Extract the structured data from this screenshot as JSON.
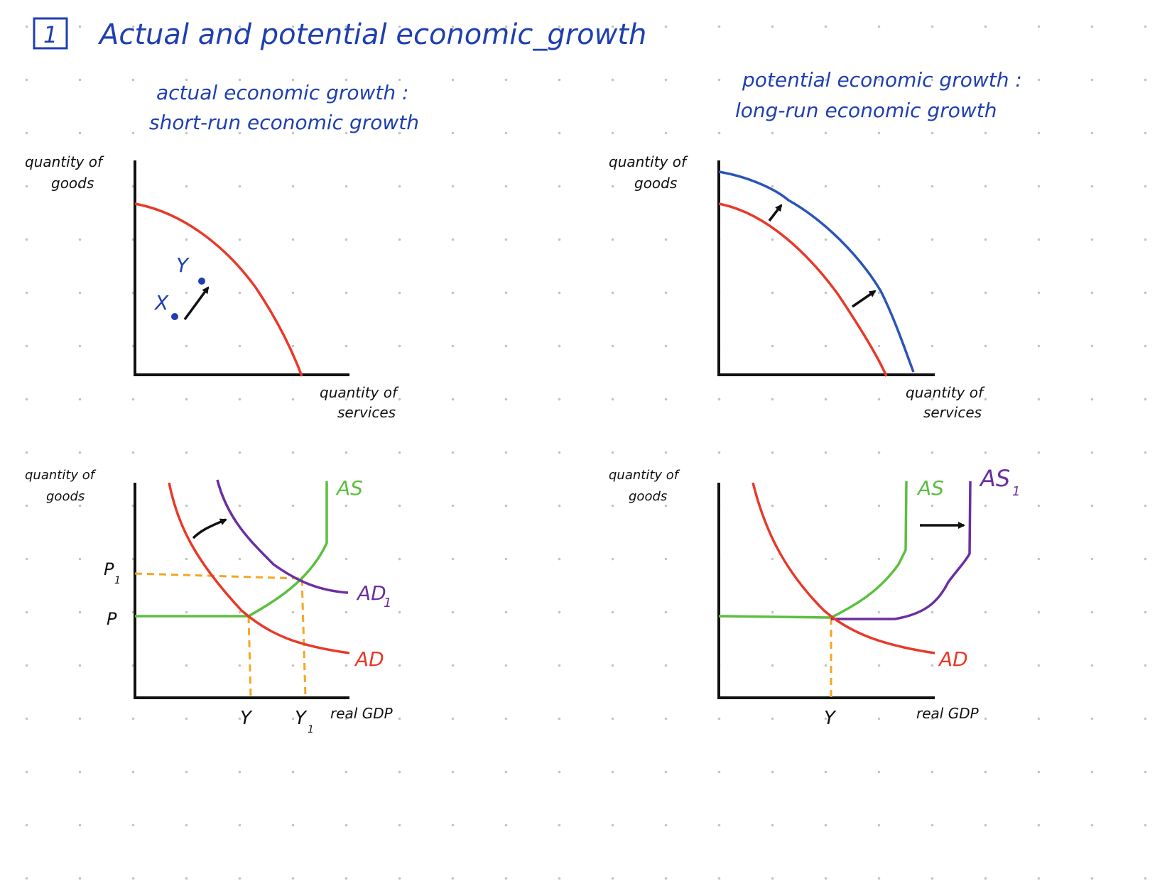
{
  "heading": {
    "number": "1",
    "title": "Actual and potential economic_growth",
    "color": "#1f3fb0"
  },
  "colors": {
    "blue_ink": "#1f3fb0",
    "black_ink": "#111111",
    "red": "#e8392a",
    "blue_curve": "#2a55b8",
    "purple": "#6a2fa0",
    "green": "#5cbf3f",
    "orange": "#f5a623"
  },
  "left_panel": {
    "title_line1": "actual economic growth :",
    "title_line2": "short-run economic growth",
    "ppf": {
      "y_label_line1": "quantity of",
      "y_label_line2": "goods",
      "x_label_line1": "quantity of",
      "x_label_line2": "services",
      "point_x_label": "X",
      "point_y_label": "Y"
    },
    "adas": {
      "y_label_line1": "quantity of",
      "y_label_line2": "goods",
      "x_label": "real GDP",
      "as_label": "AS",
      "ad_label": "AD",
      "ad1_label": "AD",
      "ad1_subscript": "1",
      "p_label": "P",
      "p1_label": "P",
      "p1_subscript": "1",
      "y_tick": "Y",
      "y1_tick": "Y",
      "y1_subscript": "1"
    }
  },
  "right_panel": {
    "title_line1": "potential economic growth :",
    "title_line2": "long-run economic growth",
    "ppf": {
      "y_label_line1": "quantity of",
      "y_label_line2": "goods",
      "x_label_line1": "quantity of",
      "x_label_line2": "services"
    },
    "adas": {
      "y_label_line1": "quantity of",
      "y_label_line2": "goods",
      "x_label": "real GDP",
      "as_label": "AS",
      "as1_label": "AS",
      "as1_subscript": "1",
      "ad_label": "AD",
      "y_tick": "Y"
    }
  }
}
